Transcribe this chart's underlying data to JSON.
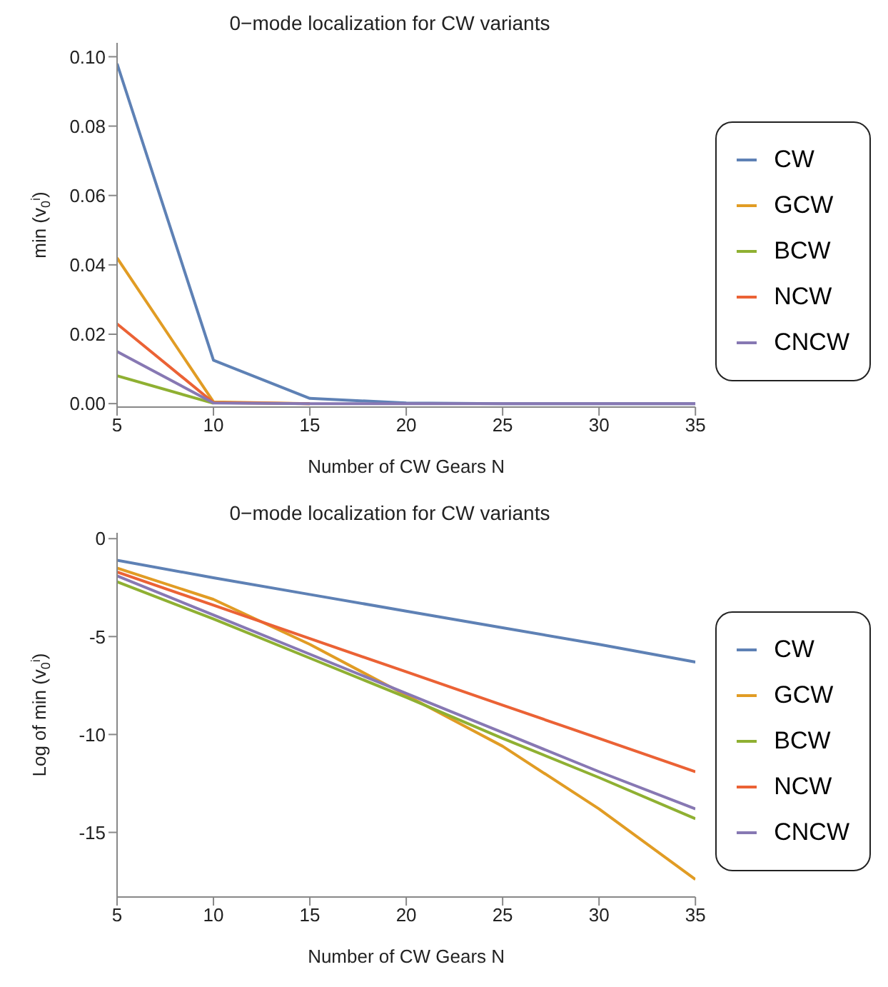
{
  "chart_data": [
    {
      "type": "line",
      "title": "0−mode localization for CW variants",
      "xlabel": "Number of CW Gears N",
      "ylabel": "min (v$_{0}$$^{i}$)",
      "x": [
        5,
        10,
        15,
        20,
        25,
        30,
        35
      ],
      "xlim": [
        5,
        35
      ],
      "xticks": [
        5,
        10,
        15,
        20,
        25,
        30,
        35
      ],
      "ylim": [
        -0.001,
        0.104
      ],
      "yticks": [
        {
          "value": 0,
          "label": "0.00"
        },
        {
          "value": 0.02,
          "label": "0.02"
        },
        {
          "value": 0.04,
          "label": "0.04"
        },
        {
          "value": 0.06,
          "label": "0.06"
        },
        {
          "value": 0.08,
          "label": "0.08"
        },
        {
          "value": 0.1,
          "label": "0.10"
        }
      ],
      "grid": false,
      "legend": "right",
      "marker": "none",
      "line_style": "solid",
      "series": [
        {
          "name": "CW",
          "color": "#5e81b5",
          "values": [
            0.098,
            0.0125,
            0.0015,
            0.0002,
            0,
            0,
            0
          ]
        },
        {
          "name": "GCW",
          "color": "#e19c24",
          "values": [
            0.042,
            0.0005,
            0,
            null,
            null,
            null,
            null
          ]
        },
        {
          "name": "BCW",
          "color": "#8fb032",
          "values": [
            0.008,
            0.0001,
            null,
            null,
            null,
            null,
            null
          ]
        },
        {
          "name": "NCW",
          "color": "#eb6235",
          "values": [
            0.023,
            0.0003,
            0,
            null,
            null,
            null,
            null
          ]
        },
        {
          "name": "CNCW",
          "color": "#8778b3",
          "values": [
            0.015,
            0.0002,
            0,
            0,
            0,
            0,
            0
          ]
        }
      ]
    },
    {
      "type": "line",
      "title": "0−mode localization for CW variants",
      "xlabel": "Number of CW Gears N",
      "ylabel": "Log of min (v$_{0}$$^{i}$)",
      "x": [
        5,
        10,
        15,
        20,
        25,
        30,
        35
      ],
      "xlim": [
        5,
        35
      ],
      "xticks": [
        5,
        10,
        15,
        20,
        25,
        30,
        35
      ],
      "ylim": [
        -18.3,
        0.3
      ],
      "yticks": [
        0,
        -5,
        -10,
        -15
      ],
      "grid": false,
      "legend": "right",
      "marker": "none",
      "line_style": "solid",
      "series": [
        {
          "name": "CW",
          "color": "#5e81b5",
          "values": [
            -1.1,
            -2.0,
            -2.85,
            -3.7,
            -4.55,
            -5.4,
            -6.3
          ]
        },
        {
          "name": "GCW",
          "color": "#e19c24",
          "values": [
            -1.5,
            -3.1,
            -5.4,
            -8.0,
            -10.6,
            -13.8,
            -17.4
          ]
        },
        {
          "name": "BCW",
          "color": "#8fb032",
          "values": [
            -2.2,
            -4.1,
            -6.1,
            -8.1,
            -10.2,
            -12.2,
            -14.3
          ]
        },
        {
          "name": "NCW",
          "color": "#eb6235",
          "values": [
            -1.7,
            -3.4,
            -5.1,
            -6.8,
            -8.5,
            -10.2,
            -11.9
          ]
        },
        {
          "name": "CNCW",
          "color": "#8778b3",
          "values": [
            -1.9,
            -3.9,
            -5.9,
            -7.9,
            -9.9,
            -11.9,
            -13.8
          ]
        }
      ]
    }
  ]
}
